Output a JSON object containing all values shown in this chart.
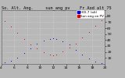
{
  "title_line": "So. Alt. Ang.     sun_ang_pv    Fr_Aod_alt_75",
  "legend_labels": [
    "HOI-7 (alt)",
    "Sun ang on PV"
  ],
  "legend_colors": [
    "#0000dd",
    "#dd0000"
  ],
  "background_color": "#b8b8b8",
  "plot_bg_color": "#b8b8b8",
  "grid_color": "#d8d8d8",
  "ylim": [
    0,
    90
  ],
  "xlim": [
    4,
    20
  ],
  "ytick_vals": [
    10,
    20,
    30,
    40,
    50,
    60,
    70,
    80
  ],
  "xtick_vals": [
    4,
    6,
    8,
    10,
    12,
    14,
    16,
    18,
    20
  ],
  "blue_x": [
    4.5,
    5.5,
    6.5,
    7.5,
    8.5,
    9.5,
    10.5,
    11.5,
    12.0,
    12.5,
    13.5,
    14.5,
    15.5,
    16.5,
    17.5,
    18.5,
    19.5
  ],
  "blue_y": [
    2,
    5,
    10,
    18,
    26,
    34,
    39,
    42,
    43,
    42,
    38,
    32,
    24,
    16,
    9,
    4,
    1
  ],
  "red_x": [
    4.5,
    5.5,
    6.5,
    7.5,
    8.5,
    9.5,
    10.5,
    11.5,
    12.0,
    12.5,
    13.5,
    14.5,
    15.5,
    16.5,
    17.5,
    18.5,
    19.5
  ],
  "red_y": [
    72,
    63,
    52,
    42,
    33,
    26,
    20,
    16,
    15,
    16,
    21,
    27,
    34,
    44,
    54,
    64,
    73
  ],
  "dot_size": 2.5,
  "title_fontsize": 3.8,
  "tick_fontsize": 3.2,
  "legend_fontsize": 3.0
}
